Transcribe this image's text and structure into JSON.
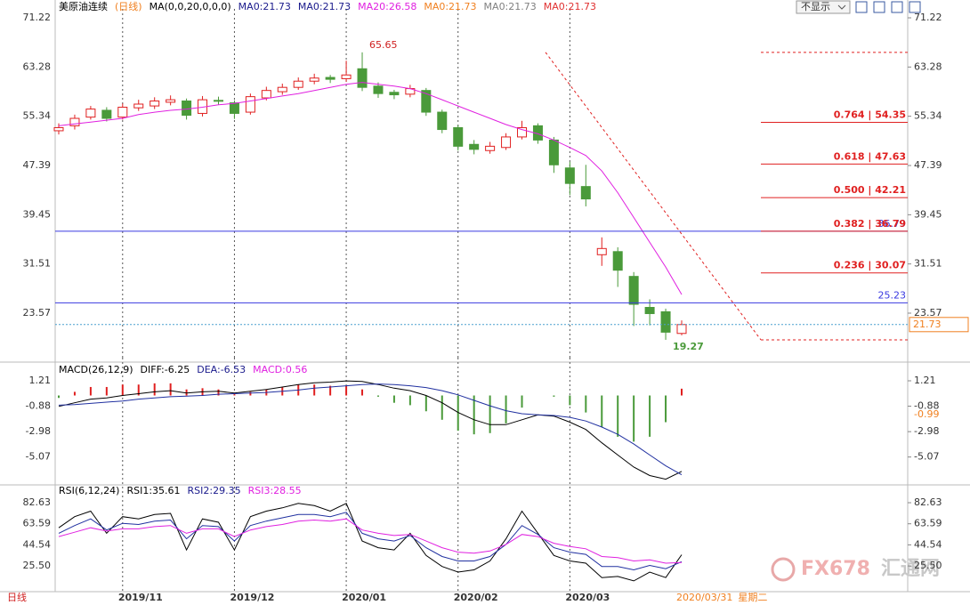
{
  "toolbar": {
    "hide_button": "不显示"
  },
  "chart_data": [
    {
      "type": "candlestick",
      "title": "美原油连续",
      "period": "(日线)",
      "indicator": "MA(0,0,20,0,0,0)",
      "legend_labels": [
        {
          "text": "MA0:21.73",
          "color": "#1a1a8c"
        },
        {
          "text": "MA0:21.73",
          "color": "#1a1a8c"
        },
        {
          "text": "MA20:26.58",
          "color": "#e020e0"
        },
        {
          "text": "MA0:21.73",
          "color": "#f08020"
        },
        {
          "text": "MA0:21.73",
          "color": "#808080"
        },
        {
          "text": "MA0:21.73",
          "color": "#e03030"
        }
      ],
      "categories": [
        null,
        null,
        null,
        null,
        "2019/11",
        null,
        null,
        null,
        null,
        null,
        null,
        "2019/12",
        null,
        null,
        null,
        null,
        null,
        null,
        "2020/01",
        null,
        null,
        null,
        null,
        null,
        null,
        "2020/02",
        null,
        null,
        null,
        null,
        null,
        null,
        "2020/03",
        null,
        null,
        null,
        null,
        null,
        null,
        null
      ],
      "open": [
        53.0,
        53.8,
        55.2,
        56.3,
        55.2,
        56.7,
        57.0,
        57.6,
        57.8,
        55.8,
        57.9,
        57.5,
        56.0,
        58.3,
        59.3,
        60.0,
        61.0,
        61.6,
        61.4,
        63.0,
        60.2,
        59.2,
        58.9,
        59.5,
        56.0,
        53.5,
        50.8,
        49.8,
        50.3,
        52.0,
        53.8,
        51.5,
        47.0,
        44.0,
        33.0,
        33.5,
        29.5,
        24.5,
        23.8,
        20.3
      ],
      "high": [
        54.2,
        55.6,
        57.0,
        56.8,
        57.4,
        58.0,
        58.4,
        58.7,
        58.2,
        58.6,
        58.5,
        57.9,
        59.0,
        60.1,
        60.6,
        61.6,
        62.2,
        62.0,
        64.3,
        65.65,
        60.8,
        59.6,
        60.4,
        59.9,
        56.4,
        53.9,
        51.5,
        51.2,
        52.6,
        54.6,
        54.2,
        52.0,
        48.0,
        47.5,
        35.8,
        34.2,
        30.2,
        25.8,
        24.3,
        22.4
      ],
      "low": [
        52.4,
        53.2,
        54.8,
        54.5,
        54.8,
        56.2,
        56.5,
        57.1,
        54.8,
        55.3,
        57.2,
        54.9,
        55.6,
        57.9,
        58.8,
        59.6,
        60.5,
        60.7,
        60.9,
        59.4,
        58.3,
        58.1,
        58.4,
        55.4,
        52.6,
        49.8,
        49.2,
        49.3,
        49.9,
        51.6,
        50.9,
        46.2,
        42.6,
        40.8,
        31.2,
        27.8,
        21.5,
        21.6,
        19.27,
        20.0
      ],
      "close": [
        53.5,
        55.0,
        56.5,
        55.0,
        56.8,
        57.3,
        57.8,
        58.0,
        55.5,
        58.0,
        57.8,
        55.8,
        58.5,
        59.5,
        60.0,
        61.0,
        61.5,
        61.3,
        62.0,
        60.0,
        59.0,
        58.8,
        59.8,
        56.0,
        53.2,
        50.5,
        50.0,
        50.5,
        52.0,
        53.5,
        51.5,
        47.5,
        44.5,
        42.0,
        34.0,
        30.5,
        25.0,
        23.5,
        20.5,
        21.73
      ],
      "up_color": "#e02020",
      "down_color": "#4a9a3a",
      "ma20": {
        "color": "#e020e0",
        "values": [
          53.8,
          54.1,
          54.4,
          54.7,
          55.0,
          55.6,
          56.0,
          56.3,
          56.5,
          56.8,
          57.2,
          57.4,
          57.8,
          58.2,
          58.6,
          59.0,
          59.5,
          60.0,
          60.5,
          60.8,
          60.5,
          60.2,
          59.8,
          59.0,
          58.0,
          57.0,
          56.0,
          55.0,
          54.0,
          53.2,
          52.5,
          51.5,
          50.3,
          49.0,
          46.5,
          43.0,
          39.0,
          35.0,
          31.0,
          26.58
        ]
      },
      "peak_label": 65.65,
      "trough_label": 19.27,
      "fib_levels": [
        {
          "value": 54.35,
          "label": "0.764 | 54.35"
        },
        {
          "value": 47.63,
          "label": "0.618 | 47.63"
        },
        {
          "value": 42.21,
          "label": "0.500 | 42.21"
        },
        {
          "value": 36.79,
          "label": "0.382 | 36.79"
        },
        {
          "value": 30.07,
          "label": "0.236 | 30.07"
        }
      ],
      "fib_color": "#e02020",
      "hlines": [
        36.79,
        25.23
      ],
      "hline_color": "#3a3ae0",
      "last_price": 21.73,
      "ylim": [
        15.96,
        71.51
      ],
      "yticks": [
        23.57,
        31.51,
        39.45,
        47.39,
        55.34,
        63.28,
        71.22
      ]
    },
    {
      "type": "macd",
      "title": "MACD(26,12,9)",
      "legend_labels": [
        {
          "text": "DIFF:-6.25",
          "color": "#000000"
        },
        {
          "text": "DEA:-6.53",
          "color": "#1a1a8c"
        },
        {
          "text": "MACD:0.56",
          "color": "#e020e0"
        }
      ],
      "series": [
        {
          "color": "#000000",
          "values": [
            -0.9,
            -0.6,
            -0.3,
            -0.2,
            0.0,
            0.15,
            0.3,
            0.4,
            0.2,
            0.3,
            0.35,
            0.2,
            0.35,
            0.5,
            0.7,
            0.9,
            1.05,
            1.1,
            1.2,
            1.15,
            0.9,
            0.6,
            0.4,
            0.0,
            -0.6,
            -1.4,
            -2.0,
            -2.4,
            -2.4,
            -2.0,
            -1.6,
            -1.7,
            -2.2,
            -2.8,
            -3.9,
            -4.9,
            -5.9,
            -6.6,
            -6.9,
            -6.25
          ]
        },
        {
          "color": "#2030a0",
          "values": [
            -0.8,
            -0.75,
            -0.65,
            -0.55,
            -0.45,
            -0.3,
            -0.2,
            -0.1,
            -0.05,
            0.0,
            0.1,
            0.15,
            0.2,
            0.25,
            0.35,
            0.45,
            0.6,
            0.7,
            0.8,
            0.9,
            0.95,
            0.9,
            0.8,
            0.65,
            0.4,
            0.05,
            -0.4,
            -0.85,
            -1.25,
            -1.5,
            -1.6,
            -1.65,
            -1.8,
            -2.1,
            -2.6,
            -3.2,
            -4.0,
            -4.9,
            -5.8,
            -6.53
          ]
        }
      ],
      "histogram": [
        -0.2,
        0.3,
        0.7,
        0.7,
        0.9,
        0.9,
        1.0,
        1.0,
        0.5,
        0.6,
        0.5,
        0.1,
        0.3,
        0.5,
        0.7,
        0.9,
        0.9,
        0.8,
        0.8,
        0.5,
        -0.1,
        -0.6,
        -0.8,
        -1.3,
        -2.0,
        -2.9,
        -3.2,
        -3.1,
        -2.3,
        -1.0,
        0.0,
        -0.1,
        -0.8,
        -1.4,
        -2.6,
        -3.4,
        -3.8,
        -3.4,
        -2.2,
        0.56
      ],
      "marker_label": -0.99,
      "ylim": [
        -7.0,
        2.53
      ],
      "yticks": [
        1.21,
        -0.88,
        -2.98,
        -5.07
      ]
    },
    {
      "type": "line",
      "title": "RSI(6,12,24)",
      "legend_labels": [
        {
          "text": "RSI1:35.61",
          "color": "#000000"
        },
        {
          "text": "RSI2:29.35",
          "color": "#1a1a8c"
        },
        {
          "text": "RSI3:28.55",
          "color": "#e020e0"
        }
      ],
      "series": [
        {
          "color": "#000000",
          "values": [
            60,
            70,
            75,
            55,
            70,
            68,
            72,
            73,
            40,
            68,
            65,
            40,
            70,
            75,
            78,
            82,
            80,
            75,
            82,
            48,
            42,
            40,
            55,
            35,
            25,
            20,
            22,
            30,
            50,
            75,
            55,
            35,
            30,
            28,
            15,
            16,
            12,
            20,
            15,
            35.61
          ]
        },
        {
          "color": "#2030a0",
          "values": [
            55,
            62,
            68,
            58,
            64,
            63,
            66,
            67,
            50,
            62,
            61,
            48,
            62,
            66,
            69,
            72,
            72,
            70,
            74,
            55,
            50,
            48,
            53,
            42,
            34,
            30,
            30,
            34,
            45,
            62,
            54,
            42,
            38,
            36,
            25,
            25,
            22,
            26,
            23,
            29.35
          ]
        },
        {
          "color": "#e020e0",
          "values": [
            52,
            56,
            60,
            57,
            59,
            59,
            61,
            62,
            55,
            59,
            59,
            52,
            58,
            61,
            63,
            66,
            67,
            66,
            68,
            58,
            55,
            53,
            54,
            48,
            42,
            38,
            37,
            39,
            45,
            54,
            52,
            46,
            43,
            41,
            34,
            33,
            30,
            31,
            28,
            28.55
          ]
        }
      ],
      "ylim": [
        2.3,
        94.7
      ],
      "yticks": [
        82.63,
        63.59,
        44.54,
        {
          "value": 25.5,
          "label": "25.50"
        }
      ]
    }
  ],
  "footer": {
    "period_tab": "日线",
    "date": "2020/03/31",
    "weekday": "星期二"
  },
  "watermark": {
    "brand": "FX678",
    "name": "汇通网"
  }
}
